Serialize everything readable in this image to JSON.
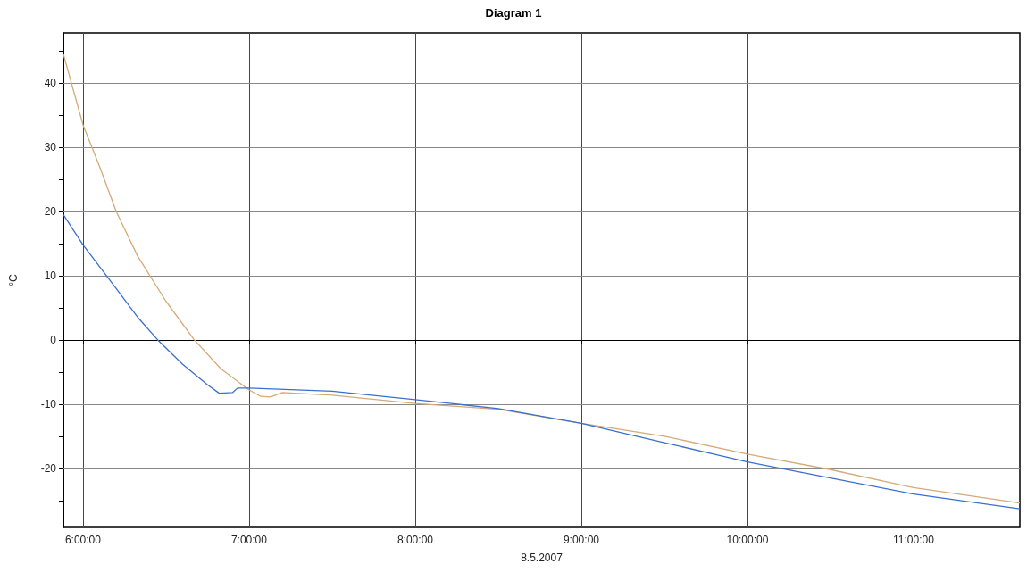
{
  "chart_data": {
    "type": "line",
    "title": "Diagram 1",
    "xlabel": "8.5.2007",
    "ylabel": "°C",
    "xlim": [
      5.882,
      11.64
    ],
    "ylim": [
      -29.2,
      47.8
    ],
    "xticks": [
      {
        "value": 6,
        "label": "6:00:00"
      },
      {
        "value": 7,
        "label": "7:00:00"
      },
      {
        "value": 8,
        "label": "8:00:00"
      },
      {
        "value": 9,
        "label": "9:00:00"
      },
      {
        "value": 10,
        "label": "10:00:00"
      },
      {
        "value": 11,
        "label": "11:00:00"
      }
    ],
    "yticks": [
      {
        "value": -25,
        "label": null
      },
      -20,
      {
        "value": -15,
        "label": null
      },
      -10,
      {
        "value": -5,
        "label": null
      },
      0,
      {
        "value": 5,
        "label": null
      },
      10,
      {
        "value": 15,
        "label": null
      },
      20,
      {
        "value": 25,
        "label": null
      },
      30,
      {
        "value": 35,
        "label": null
      },
      40,
      {
        "value": 45,
        "label": null
      }
    ],
    "grid": true,
    "marker": "none",
    "line_style": "solid",
    "series": [
      {
        "color": "#d4aa78",
        "x": [
          5.882,
          6.0,
          6.1,
          6.2,
          6.33,
          6.5,
          6.67,
          6.83,
          7.0,
          7.07,
          7.13,
          7.2,
          7.5,
          8.0,
          8.5,
          9.0,
          9.5,
          10.0,
          10.5,
          11.0,
          11.64
        ],
        "values": [
          44.5,
          33.5,
          27,
          20,
          13,
          6,
          0,
          -4.5,
          -7.8,
          -8.8,
          -8.9,
          -8.2,
          -8.6,
          -9.9,
          -10.8,
          -13,
          -15,
          -17.8,
          -20.2,
          -23,
          -25.4
        ]
      },
      {
        "color": "#3a6fcf",
        "x": [
          5.882,
          6.0,
          6.2,
          6.33,
          6.45,
          6.6,
          6.75,
          6.82,
          6.9,
          6.93,
          7.0,
          7.5,
          8.0,
          8.5,
          9.0,
          9.5,
          10.0,
          10.5,
          11.0,
          11.64
        ],
        "values": [
          19.5,
          14.8,
          8,
          3.5,
          0,
          -3.8,
          -7,
          -8.3,
          -8.2,
          -7.5,
          -7.5,
          -8,
          -9.3,
          -10.7,
          -13,
          -16,
          -19,
          -21.5,
          -24,
          -26.3
        ]
      }
    ]
  }
}
